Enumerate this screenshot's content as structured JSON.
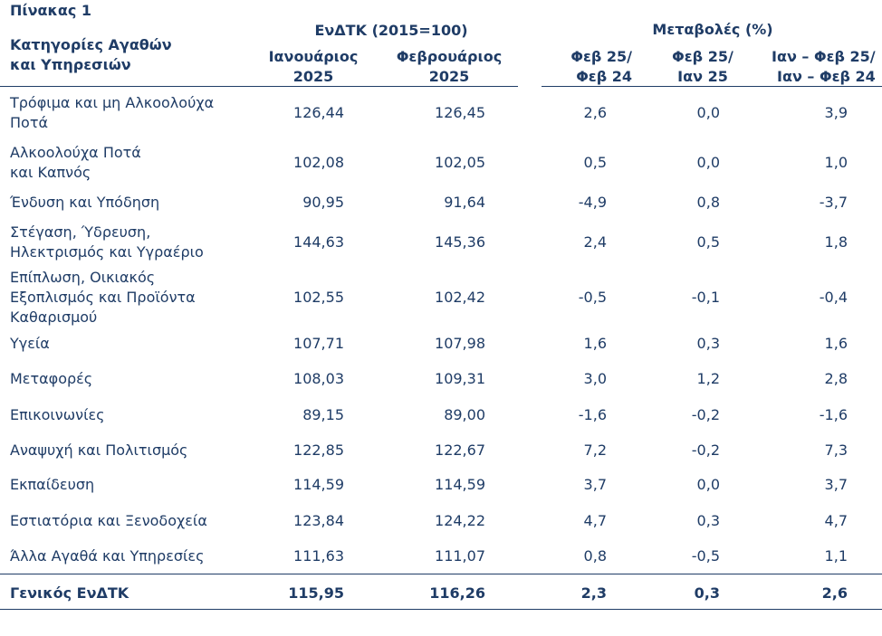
{
  "table": {
    "title": "Πίνακας 1",
    "header": {
      "category_line1": "Κατηγορίες Αγαθών",
      "category_line2": "και Υπηρεσιών",
      "index_group": "ΕνΔΤΚ (2015=100)",
      "changes_group": "Μεταβολές (%)",
      "col_jan_line1": "Ιανουάριος",
      "col_jan_line2": "2025",
      "col_feb_line1": "Φεβρουάριος",
      "col_feb_line2": "2025",
      "col_c1_line1": "Φεβ 25/",
      "col_c1_line2": "Φεβ 24",
      "col_c2_line1": "Φεβ 25/",
      "col_c2_line2": "Ιαν 25",
      "col_c3_line1": "Ιαν – Φεβ 25/",
      "col_c3_line2": "Ιαν – Φεβ 24"
    },
    "rows": [
      {
        "label1": "Τρόφιμα και μη Αλκοολούχα",
        "label2": "Ποτά",
        "label3": "",
        "jan": "126,44",
        "feb": "126,45",
        "c1": "2,6",
        "c2": "0,0",
        "c3": "3,9"
      },
      {
        "label1": "Αλκοολούχα Ποτά",
        "label2": "και Καπνός",
        "label3": "",
        "jan": "102,08",
        "feb": "102,05",
        "c1": "0,5",
        "c2": "0,0",
        "c3": "1,0"
      },
      {
        "label1": "Ένδυση και Υπόδηση",
        "label2": "",
        "label3": "",
        "jan": "90,95",
        "feb": "91,64",
        "c1": "-4,9",
        "c2": "0,8",
        "c3": "-3,7"
      },
      {
        "label1": "Στέγαση, Ύδρευση,",
        "label2": "Ηλεκτρισμός και Υγραέριο",
        "label3": "",
        "jan": "144,63",
        "feb": "145,36",
        "c1": "2,4",
        "c2": "0,5",
        "c3": "1,8"
      },
      {
        "label1": "Επίπλωση, Οικιακός",
        "label2": "Εξοπλισμός και Προϊόντα",
        "label3": "Καθαρισμού",
        "jan": "102,55",
        "feb": "102,42",
        "c1": "-0,5",
        "c2": "-0,1",
        "c3": "-0,4"
      },
      {
        "label1": "Υγεία",
        "label2": "",
        "label3": "",
        "jan": "107,71",
        "feb": "107,98",
        "c1": "1,6",
        "c2": "0,3",
        "c3": "1,6"
      },
      {
        "label1": "Μεταφορές",
        "label2": "",
        "label3": "",
        "jan": "108,03",
        "feb": "109,31",
        "c1": "3,0",
        "c2": "1,2",
        "c3": "2,8"
      },
      {
        "label1": "Επικοινωνίες",
        "label2": "",
        "label3": "",
        "jan": "89,15",
        "feb": "89,00",
        "c1": "-1,6",
        "c2": "-0,2",
        "c3": "-1,6"
      },
      {
        "label1": "Αναψυχή και Πολιτισμός",
        "label2": "",
        "label3": "",
        "jan": "122,85",
        "feb": "122,67",
        "c1": "7,2",
        "c2": "-0,2",
        "c3": "7,3"
      },
      {
        "label1": "Εκπαίδευση",
        "label2": "",
        "label3": "",
        "jan": "114,59",
        "feb": "114,59",
        "c1": "3,7",
        "c2": "0,0",
        "c3": "3,7"
      },
      {
        "label1": "Εστιατόρια και Ξενοδοχεία",
        "label2": "",
        "label3": "",
        "jan": "123,84",
        "feb": "124,22",
        "c1": "4,7",
        "c2": "0,3",
        "c3": "4,7"
      },
      {
        "label1": "Άλλα Αγαθά και Υπηρεσίες",
        "label2": "",
        "label3": "",
        "jan": "111,63",
        "feb": "111,07",
        "c1": "0,8",
        "c2": "-0,5",
        "c3": "1,1"
      }
    ],
    "total": {
      "label": "Γενικός ΕνΔΤΚ",
      "jan": "115,95",
      "feb": "116,26",
      "c1": "2,3",
      "c2": "0,3",
      "c3": "2,6"
    }
  }
}
